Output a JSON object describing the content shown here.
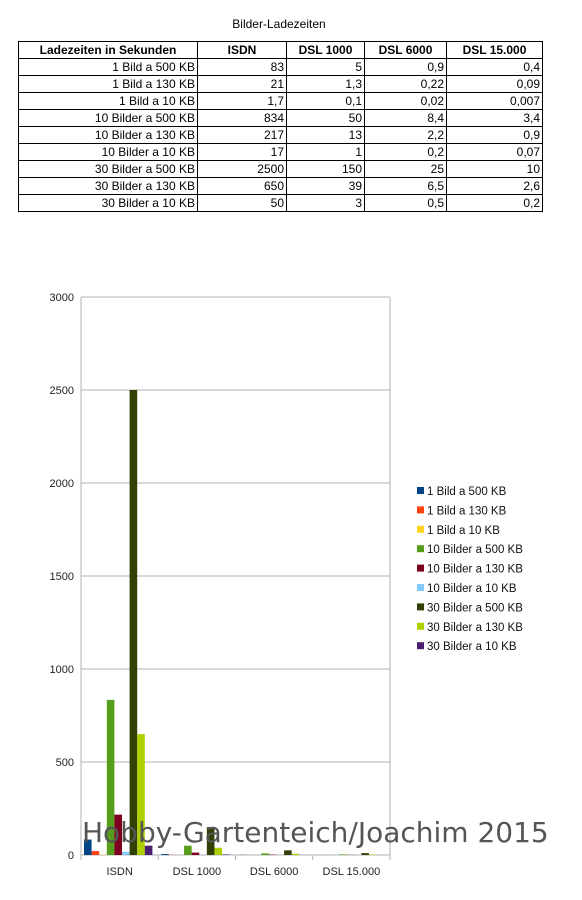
{
  "table": {
    "title": "Bilder-Ladezeiten",
    "headers": [
      "Ladezeiten in Sekunden",
      "ISDN",
      "DSL 1000",
      "DSL 6000",
      "DSL 15.000"
    ],
    "rows": [
      [
        "1 Bild a 500 KB",
        "83",
        "5",
        "0,9",
        "0,4"
      ],
      [
        "1 Bild a 130 KB",
        "21",
        "1,3",
        "0,22",
        "0,09"
      ],
      [
        "1 Bild a 10 KB",
        "1,7",
        "0,1",
        "0,02",
        "0,007"
      ],
      [
        "10 Bilder a 500 KB",
        "834",
        "50",
        "8,4",
        "3,4"
      ],
      [
        "10 Bilder a 130 KB",
        "217",
        "13",
        "2,2",
        "0,9"
      ],
      [
        "10 Bilder a 10 KB",
        "17",
        "1",
        "0,2",
        "0,07"
      ],
      [
        "30 Bilder a 500 KB",
        "2500",
        "150",
        "25",
        "10"
      ],
      [
        "30 Bilder a 130 KB",
        "650",
        "39",
        "6,5",
        "2,6"
      ],
      [
        "30 Bilder a 10 KB",
        "50",
        "3",
        "0,5",
        "0,2"
      ]
    ]
  },
  "chart_data": {
    "type": "bar",
    "categories": [
      "ISDN",
      "DSL 1000",
      "DSL 6000",
      "DSL 15.000"
    ],
    "ylim": [
      0,
      3000
    ],
    "yticks": [
      0,
      500,
      1000,
      1500,
      2000,
      2500,
      3000
    ],
    "grid": true,
    "legend_position": "right",
    "series": [
      {
        "name": "1 Bild a 500 KB",
        "color": "#004586",
        "values": [
          83,
          5,
          0.9,
          0.4
        ]
      },
      {
        "name": "1 Bild a 130 KB",
        "color": "#ff420e",
        "values": [
          21,
          1.3,
          0.22,
          0.09
        ]
      },
      {
        "name": "1 Bild a 10 KB",
        "color": "#ffd320",
        "values": [
          1.7,
          0.1,
          0.02,
          0.007
        ]
      },
      {
        "name": "10 Bilder a 500 KB",
        "color": "#579d1c",
        "values": [
          834,
          50,
          8.4,
          3.4
        ]
      },
      {
        "name": "10 Bilder a 130 KB",
        "color": "#7e0021",
        "values": [
          217,
          13,
          2.2,
          0.9
        ]
      },
      {
        "name": "10 Bilder a 10 KB",
        "color": "#83caff",
        "values": [
          17,
          1,
          0.2,
          0.07
        ]
      },
      {
        "name": "30 Bilder a 500 KB",
        "color": "#314004",
        "values": [
          2500,
          150,
          25,
          10
        ]
      },
      {
        "name": "30 Bilder a 130 KB",
        "color": "#aecf00",
        "values": [
          650,
          39,
          6.5,
          2.6
        ]
      },
      {
        "name": "30 Bilder a 10 KB",
        "color": "#4b1f6f",
        "values": [
          50,
          3,
          0.5,
          0.2
        ]
      }
    ]
  },
  "watermark": "Hobby-Gartenteich/Joachim 2015"
}
